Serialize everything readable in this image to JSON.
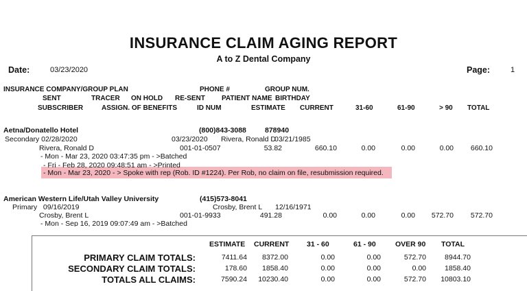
{
  "report": {
    "title": "INSURANCE CLAIM AGING REPORT",
    "company": "A to Z Dental Company",
    "date_label": "Date:",
    "date_value": "03/23/2020",
    "page_label": "Page:",
    "page_value": "1"
  },
  "headers": {
    "row1": {
      "company": "INSURANCE COMPANY/GROUP PLAN",
      "phone": "PHONE #",
      "group": "GROUP NUM."
    },
    "row2": {
      "sent": "SENT",
      "tracer": "TRACER",
      "on_hold": "ON HOLD",
      "resent": "RE-SENT",
      "patient_name": "PATIENT NAME",
      "birthday": "BIRTHDAY"
    },
    "row3": {
      "subscriber": "SUBSCRIBER",
      "assign": "ASSIGN. OF BENEFITS",
      "id_num": "ID NUM",
      "estimate": "ESTIMATE",
      "current": "CURRENT",
      "d31_60": "31-60",
      "d61_90": "61-90",
      "over90": "> 90",
      "total": "TOTAL"
    }
  },
  "claims": [
    {
      "company": "Aetna/Donatello Hotel",
      "phone": "(800)843-3088",
      "group": "878940",
      "type_sent": "Secondary 02/28/2020",
      "resent": "03/23/2020",
      "patient": "Rivera, Ronald D",
      "birthday": "03/21/1985",
      "subscriber": "Rivera, Ronald D",
      "id_num": "001-01-0507",
      "estimate": "53.82",
      "current": "660.10",
      "d31_60": "0.00",
      "d61_90": "0.00",
      "over90": "0.00",
      "total": "660.10",
      "notes": [
        "- Mon - Mar 23, 2020 03:47:35 pm - >Batched",
        "- Fri - Feb 28, 2020 09:48:51 am - >Printed",
        "- Mon - Mar 23, 2020 - > Spoke with rep (Rob. ID #1224). Per Rob, no claim on file, resubmission required."
      ]
    },
    {
      "company": "American Western Life/Utah Valley University",
      "phone": "(415)573-8041",
      "type_sent": "Primary   09/16/2019",
      "patient": "Crosby, Brent L",
      "birthday": "12/16/1971",
      "subscriber": "Crosby, Brent L",
      "id_num": "001-01-9933",
      "estimate": "491.28",
      "current": "0.00",
      "d31_60": "0.00",
      "d61_90": "0.00",
      "over90": "572.70",
      "total": "572.70",
      "notes": [
        "- Mon - Sep 16, 2019 09:07:49 am - >Batched"
      ]
    }
  ],
  "totals": {
    "headers": {
      "estimate": "ESTIMATE",
      "current": "CURRENT",
      "d31_60": "31 - 60",
      "d61_90": "61 - 90",
      "over90": "OVER 90",
      "total": "TOTAL"
    },
    "rows": [
      {
        "label": "PRIMARY CLAIM TOTALS:",
        "estimate": "7411.64",
        "current": "8372.00",
        "d31_60": "0.00",
        "d61_90": "0.00",
        "over90": "572.70",
        "total": "8944.70"
      },
      {
        "label": "SECONDARY CLAIM TOTALS:",
        "estimate": "178.60",
        "current": "1858.40",
        "d31_60": "0.00",
        "d61_90": "0.00",
        "over90": "0.00",
        "total": "1858.40"
      },
      {
        "label": "TOTALS ALL CLAIMS:",
        "estimate": "7590.24",
        "current": "10230.40",
        "d31_60": "0.00",
        "d61_90": "0.00",
        "over90": "572.70",
        "total": "10803.10"
      }
    ]
  },
  "colors": {
    "highlight": "#f3b7bd",
    "text": "#111111"
  }
}
